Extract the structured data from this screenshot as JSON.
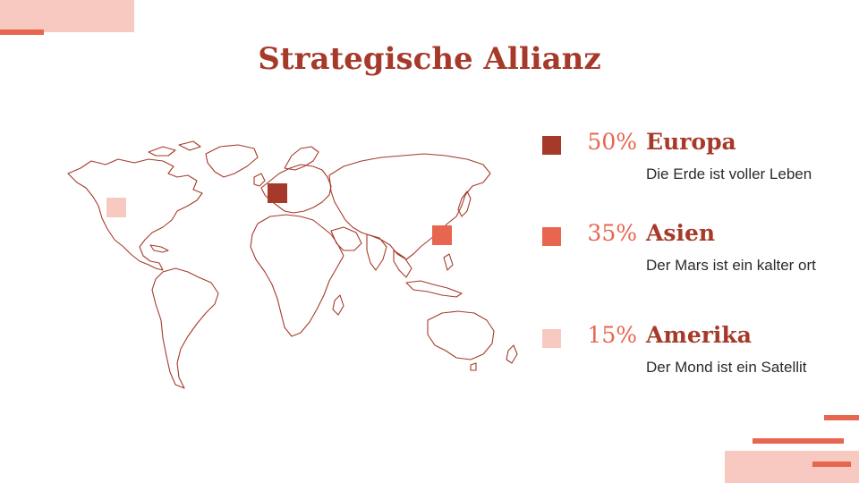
{
  "title": "Strategische Allianz",
  "colors": {
    "dark": "#a63a2a",
    "medium": "#e8654f",
    "light": "#f7c9c0",
    "map_outline": "#a63a2a"
  },
  "regions": [
    {
      "key": "europa",
      "percent": "50%",
      "name": "Europa",
      "description": "Die Erde ist voller Leben",
      "color": "#a63a2a"
    },
    {
      "key": "asien",
      "percent": "35%",
      "name": "Asien",
      "description": "Der Mars ist ein kalter ort",
      "color": "#e8654f"
    },
    {
      "key": "amerika",
      "percent": "15%",
      "name": "Amerika",
      "description": "Der Mond ist ein Satellit",
      "color": "#f7c9c0"
    }
  ]
}
